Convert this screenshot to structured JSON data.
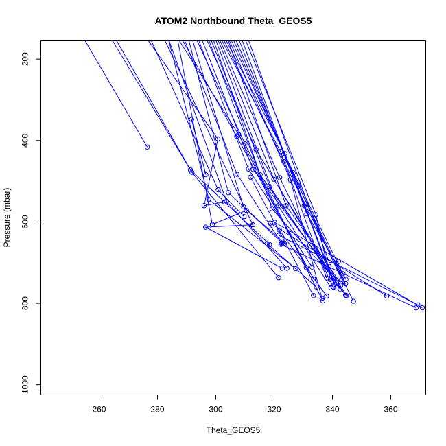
{
  "chart_data": {
    "type": "scatter",
    "title": "ATOM2 Northbound Theta_GEOS5",
    "xlabel": "Theta_GEOS5",
    "ylabel": "Pressure (mbar)",
    "xlim": [
      240,
      372
    ],
    "ylim": [
      1025,
      155
    ],
    "y_reversed": true,
    "x_ticks": [
      260,
      280,
      300,
      320,
      340,
      360
    ],
    "y_ticks": [
      200,
      400,
      600,
      800,
      1000
    ],
    "grid": false,
    "color": "#0000ff",
    "series": [
      {
        "x": [
          255.2,
          276.5
        ],
        "y": [
          155,
          416
        ]
      },
      {
        "x": [
          264.6,
          291.3,
          318.4
        ],
        "y": [
          155,
          472,
          655
        ]
      },
      {
        "x": [
          266.0,
          291.8,
          321.5
        ],
        "y": [
          155,
          478,
          737
        ]
      },
      {
        "x": [
          291.7,
          296.6
        ],
        "y": [
          348,
          484
        ]
      },
      {
        "x": [
          276.9,
          300.7,
          296.0,
          303.0
        ],
        "y": [
          155,
          396,
          560,
          551
        ]
      },
      {
        "x": [
          277.9,
          300.8,
          309.7
        ],
        "y": [
          155,
          521,
          587
        ]
      },
      {
        "x": [
          282.6,
          312.7,
          296.5,
          322.8
        ],
        "y": [
          155,
          607,
          613,
          714
        ]
      },
      {
        "x": [
          283.9,
          297.6,
          327.4
        ],
        "y": [
          155,
          545,
          715
        ]
      },
      {
        "x": [
          284.0,
          303.7,
          324.4
        ],
        "y": [
          155,
          550,
          714
        ]
      },
      {
        "x": [
          287.0,
          298.8,
          310.5
        ],
        "y": [
          155,
          606,
          572
        ]
      },
      {
        "x": [
          287.5,
          307.8,
          336.7
        ],
        "y": [
          155,
          385,
          794
        ]
      },
      {
        "x": [
          288.7,
          307.2,
          333.5
        ],
        "y": [
          155,
          390,
          740
        ]
      },
      {
        "x": [
          289.4,
          307.3,
          322.6
        ],
        "y": [
          155,
          483,
          653
        ]
      },
      {
        "x": [
          290.8,
          304.3,
          322.8
        ],
        "y": [
          155,
          528,
          652
        ]
      },
      {
        "x": [
          292.1,
          309.5,
          323.5
        ],
        "y": [
          155,
          563,
          652
        ]
      },
      {
        "x": [
          293.6,
          310.0,
          331.0
        ],
        "y": [
          155,
          408,
          712
        ]
      },
      {
        "x": [
          294.2,
          311.2,
          333.0
        ],
        "y": [
          155,
          470,
          711
        ]
      },
      {
        "x": [
          295.4,
          312.8,
          342.8
        ],
        "y": [
          155,
          471,
          756
        ]
      },
      {
        "x": [
          297.1,
          313.8,
          340.4
        ],
        "y": [
          155,
          422,
          739
        ]
      },
      {
        "x": [
          297.7,
          315.2,
          344.5
        ],
        "y": [
          155,
          484,
          780
        ]
      },
      {
        "x": [
          298.5,
          318.5,
          342.6
        ],
        "y": [
          155,
          513,
          765
        ]
      },
      {
        "x": [
          299.3,
          319.3,
          340.6
        ],
        "y": [
          155,
          568,
          739
        ]
      },
      {
        "x": [
          300.1,
          321.4,
          339.5
        ],
        "y": [
          155,
          560,
          762
        ]
      },
      {
        "x": [
          300.9,
          319.9,
          344.8
        ],
        "y": [
          155,
          495,
          781
        ]
      },
      {
        "x": [
          301.5,
          321.9,
          340.3
        ],
        "y": [
          155,
          491,
          760
        ]
      },
      {
        "x": [
          302.2,
          322.2,
          338.0
        ],
        "y": [
          155,
          427,
          738
        ]
      },
      {
        "x": [
          302.9,
          323.4,
          347.2
        ],
        "y": [
          155,
          452,
          795
        ]
      },
      {
        "x": [
          303.6,
          323.7,
          341.3
        ],
        "y": [
          155,
          432,
          762
        ]
      },
      {
        "x": [
          304.3,
          324.1,
          342.8
        ],
        "y": [
          155,
          560,
          750
        ]
      },
      {
        "x": [
          304.7,
          325.6,
          336.4
        ],
        "y": [
          155,
          497,
          788
        ]
      },
      {
        "x": [
          305.4,
          326.6,
          343.6
        ],
        "y": [
          155,
          479,
          727
        ]
      },
      {
        "x": [
          306.2,
          328.2,
          343.1
        ],
        "y": [
          155,
          508,
          741
        ]
      },
      {
        "x": [
          307.0,
          328.4,
          344.5
        ],
        "y": [
          155,
          512,
          752
        ]
      },
      {
        "x": [
          308.1,
          330.3,
          340.6
        ],
        "y": [
          155,
          560,
          754
        ]
      },
      {
        "x": [
          309.1,
          331.2,
          344.6
        ],
        "y": [
          155,
          580,
          741
        ]
      },
      {
        "x": [
          310.3,
          334.3,
          339.3
        ],
        "y": [
          155,
          582,
          741
        ]
      },
      {
        "x": [
          311.3,
          338.9,
          342.1
        ],
        "y": [
          155,
          700,
          697
        ]
      },
      {
        "x": [
          322.3,
          368.7
        ],
        "y": [
          655,
          811
        ]
      },
      {
        "x": [
          321.6,
          369.3
        ],
        "y": [
          633,
          804
        ]
      },
      {
        "x": [
          320.2,
          370.8
        ],
        "y": [
          601,
          811
        ]
      },
      {
        "x": [
          318.6,
          358.6
        ],
        "y": [
          603,
          782
        ]
      },
      {
        "x": [
          317.6,
          334.5
        ],
        "y": [
          653,
          760
        ]
      },
      {
        "x": [
          321.8,
          338.0
        ],
        "y": [
          620,
          782
        ]
      },
      {
        "x": [
          311.9,
          333.5
        ],
        "y": [
          490,
          781
        ]
      }
    ]
  }
}
